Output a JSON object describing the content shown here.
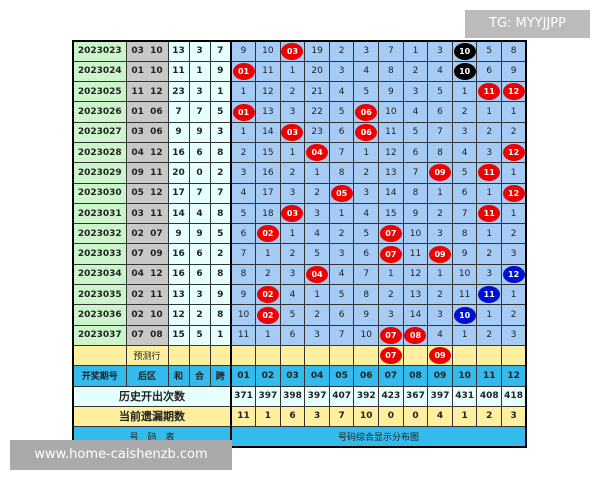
{
  "watermarks": {
    "top": "TG: MYYJJPP",
    "bottom": "www.home-caishenzb.com"
  },
  "colors": {
    "red": "#e00000",
    "black": "#000000",
    "blue": "#0010d0"
  },
  "rows": [
    {
      "period": "2023023",
      "back": "03 10",
      "he": "13",
      "hw": "3",
      "kua": "7",
      "cells": [
        "9",
        "10",
        "03",
        "19",
        "2",
        "3",
        "7",
        "1",
        "3",
        "10",
        "5",
        "8"
      ],
      "balls": [
        null,
        null,
        "red",
        null,
        null,
        null,
        null,
        null,
        null,
        "black",
        null,
        null
      ]
    },
    {
      "period": "2023024",
      "back": "01 10",
      "he": "11",
      "hw": "1",
      "kua": "9",
      "cells": [
        "01",
        "11",
        "1",
        "20",
        "3",
        "4",
        "8",
        "2",
        "4",
        "10",
        "6",
        "9"
      ],
      "balls": [
        "red",
        null,
        null,
        null,
        null,
        null,
        null,
        null,
        null,
        "black",
        null,
        null
      ]
    },
    {
      "period": "2023025",
      "back": "11 12",
      "he": "23",
      "hw": "3",
      "kua": "1",
      "cells": [
        "1",
        "12",
        "2",
        "21",
        "4",
        "5",
        "9",
        "3",
        "5",
        "1",
        "11",
        "12"
      ],
      "balls": [
        null,
        null,
        null,
        null,
        null,
        null,
        null,
        null,
        null,
        null,
        "red",
        "red"
      ]
    },
    {
      "period": "2023026",
      "back": "01 06",
      "he": "7",
      "hw": "7",
      "kua": "5",
      "cells": [
        "01",
        "13",
        "3",
        "22",
        "5",
        "06",
        "10",
        "4",
        "6",
        "2",
        "1",
        "1"
      ],
      "balls": [
        "red",
        null,
        null,
        null,
        null,
        "red",
        null,
        null,
        null,
        null,
        null,
        null
      ]
    },
    {
      "period": "2023027",
      "back": "03 06",
      "he": "9",
      "hw": "9",
      "kua": "3",
      "cells": [
        "1",
        "14",
        "03",
        "23",
        "6",
        "06",
        "11",
        "5",
        "7",
        "3",
        "2",
        "2"
      ],
      "balls": [
        null,
        null,
        "red",
        null,
        null,
        "red",
        null,
        null,
        null,
        null,
        null,
        null
      ]
    },
    {
      "period": "2023028",
      "back": "04 12",
      "he": "16",
      "hw": "6",
      "kua": "8",
      "cells": [
        "2",
        "15",
        "1",
        "04",
        "7",
        "1",
        "12",
        "6",
        "8",
        "4",
        "3",
        "12"
      ],
      "balls": [
        null,
        null,
        null,
        "red",
        null,
        null,
        null,
        null,
        null,
        null,
        null,
        "red"
      ]
    },
    {
      "period": "2023029",
      "back": "09 11",
      "he": "20",
      "hw": "0",
      "kua": "2",
      "cells": [
        "3",
        "16",
        "2",
        "1",
        "8",
        "2",
        "13",
        "7",
        "09",
        "5",
        "11",
        "1"
      ],
      "balls": [
        null,
        null,
        null,
        null,
        null,
        null,
        null,
        null,
        "red",
        null,
        "red",
        null
      ]
    },
    {
      "period": "2023030",
      "back": "05 12",
      "he": "17",
      "hw": "7",
      "kua": "7",
      "cells": [
        "4",
        "17",
        "3",
        "2",
        "05",
        "3",
        "14",
        "8",
        "1",
        "6",
        "1",
        "12"
      ],
      "balls": [
        null,
        null,
        null,
        null,
        "red",
        null,
        null,
        null,
        null,
        null,
        null,
        "red"
      ]
    },
    {
      "period": "2023031",
      "back": "03 11",
      "he": "14",
      "hw": "4",
      "kua": "8",
      "cells": [
        "5",
        "18",
        "03",
        "3",
        "1",
        "4",
        "15",
        "9",
        "2",
        "7",
        "11",
        "1"
      ],
      "balls": [
        null,
        null,
        "red",
        null,
        null,
        null,
        null,
        null,
        null,
        null,
        "red",
        null
      ]
    },
    {
      "period": "2023032",
      "back": "02 07",
      "he": "9",
      "hw": "9",
      "kua": "5",
      "cells": [
        "6",
        "02",
        "1",
        "4",
        "2",
        "5",
        "07",
        "10",
        "3",
        "8",
        "1",
        "2"
      ],
      "balls": [
        null,
        "red",
        null,
        null,
        null,
        null,
        "red",
        null,
        null,
        null,
        null,
        null
      ]
    },
    {
      "period": "2023033",
      "back": "07 09",
      "he": "16",
      "hw": "6",
      "kua": "2",
      "cells": [
        "7",
        "1",
        "2",
        "5",
        "3",
        "6",
        "07",
        "11",
        "09",
        "9",
        "2",
        "3"
      ],
      "balls": [
        null,
        null,
        null,
        null,
        null,
        null,
        "red",
        null,
        "red",
        null,
        null,
        null
      ]
    },
    {
      "period": "2023034",
      "back": "04 12",
      "he": "16",
      "hw": "6",
      "kua": "8",
      "cells": [
        "8",
        "2",
        "3",
        "04",
        "4",
        "7",
        "1",
        "12",
        "1",
        "10",
        "3",
        "12"
      ],
      "balls": [
        null,
        null,
        null,
        "red",
        null,
        null,
        null,
        null,
        null,
        null,
        null,
        "blue"
      ]
    },
    {
      "period": "2023035",
      "back": "02 11",
      "he": "13",
      "hw": "3",
      "kua": "9",
      "cells": [
        "9",
        "02",
        "4",
        "1",
        "5",
        "8",
        "2",
        "13",
        "2",
        "11",
        "11",
        "1"
      ],
      "balls": [
        null,
        "red",
        null,
        null,
        null,
        null,
        null,
        null,
        null,
        null,
        "blue",
        null
      ]
    },
    {
      "period": "2023036",
      "back": "02 10",
      "he": "12",
      "hw": "2",
      "kua": "8",
      "cells": [
        "10",
        "02",
        "5",
        "2",
        "6",
        "9",
        "3",
        "14",
        "3",
        "10",
        "1",
        "2"
      ],
      "balls": [
        null,
        "red",
        null,
        null,
        null,
        null,
        null,
        null,
        null,
        "blue",
        null,
        null
      ]
    },
    {
      "period": "2023037",
      "back": "07 08",
      "he": "15",
      "hw": "5",
      "kua": "1",
      "cells": [
        "11",
        "1",
        "6",
        "3",
        "7",
        "10",
        "07",
        "08",
        "4",
        "1",
        "2",
        "3"
      ],
      "balls": [
        null,
        null,
        null,
        null,
        null,
        null,
        "red",
        "red",
        null,
        null,
        null,
        null
      ]
    }
  ],
  "predict": {
    "label": "预测行",
    "cells": [
      "",
      "",
      "",
      "",
      "",
      "",
      "07",
      "",
      "09",
      "",
      "",
      ""
    ],
    "balls": [
      null,
      null,
      null,
      null,
      null,
      null,
      "red",
      null,
      "red",
      null,
      null,
      null
    ]
  },
  "header": {
    "period": "开奖期号",
    "back": "后区",
    "he": "和",
    "hw": "合",
    "kua": "跨",
    "numbers": [
      "01",
      "02",
      "03",
      "04",
      "05",
      "06",
      "07",
      "08",
      "09",
      "10",
      "11",
      "12"
    ]
  },
  "history": {
    "label": "历史开出次数",
    "values": [
      "371",
      "397",
      "398",
      "397",
      "407",
      "392",
      "423",
      "367",
      "397",
      "431",
      "408",
      "418"
    ]
  },
  "omission": {
    "label": "当前遗漏期数",
    "values": [
      "11",
      "1",
      "6",
      "3",
      "7",
      "10",
      "0",
      "0",
      "4",
      "1",
      "2",
      "3"
    ]
  },
  "footer": {
    "left": "号　码　表",
    "right": "号码综合显示分布图"
  }
}
